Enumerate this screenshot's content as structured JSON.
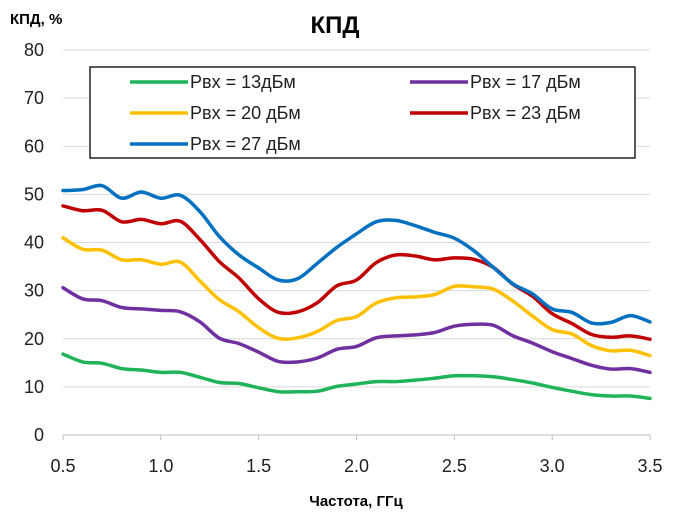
{
  "chart_data": {
    "type": "line",
    "title": "КПД",
    "ylabel": "КПД, %",
    "xlabel": "Частота, ГГц",
    "xlim": [
      0.5,
      3.5
    ],
    "ylim": [
      0,
      80
    ],
    "x_ticks": [
      "0.5",
      "1.0",
      "1.5",
      "2.0",
      "2.5",
      "3.0",
      "3.5"
    ],
    "y_ticks": [
      "0",
      "10",
      "20",
      "30",
      "40",
      "50",
      "60",
      "70",
      "80"
    ],
    "grid": "horizontal",
    "legend_position": "top",
    "x": [
      0.5,
      0.6,
      0.7,
      0.8,
      0.9,
      1.0,
      1.1,
      1.2,
      1.3,
      1.4,
      1.5,
      1.6,
      1.7,
      1.8,
      1.9,
      2.0,
      2.1,
      2.2,
      2.3,
      2.4,
      2.5,
      2.6,
      2.7,
      2.8,
      2.9,
      3.0,
      3.1,
      3.2,
      3.3,
      3.4,
      3.5
    ],
    "series": [
      {
        "name": "Pвх = 13дБм",
        "color": "#1fb35a",
        "values": [
          16.8,
          15.2,
          14.9,
          13.8,
          13.5,
          13.0,
          13.0,
          12.0,
          10.9,
          10.7,
          9.8,
          9.0,
          9.0,
          9.1,
          10.1,
          10.6,
          11.1,
          11.1,
          11.4,
          11.8,
          12.3,
          12.3,
          12.1,
          11.5,
          10.8,
          9.9,
          9.1,
          8.4,
          8.1,
          8.1,
          7.6
        ]
      },
      {
        "name": "Pвх = 17 дБм",
        "color": "#7030a0",
        "values": [
          30.6,
          28.3,
          27.9,
          26.5,
          26.2,
          25.9,
          25.6,
          23.5,
          20.1,
          19.0,
          17.2,
          15.3,
          15.2,
          16.0,
          17.8,
          18.4,
          20.2,
          20.6,
          20.8,
          21.3,
          22.6,
          23.0,
          22.8,
          20.6,
          19.1,
          17.3,
          15.9,
          14.5,
          13.7,
          13.8,
          13.0
        ]
      },
      {
        "name": "Pвх = 20 дБм",
        "color": "#ffc000",
        "values": [
          41.0,
          38.6,
          38.4,
          36.4,
          36.4,
          35.5,
          35.9,
          32.0,
          28.1,
          25.6,
          22.3,
          20.1,
          20.2,
          21.5,
          23.8,
          24.6,
          27.4,
          28.5,
          28.7,
          29.2,
          30.9,
          30.8,
          30.3,
          27.8,
          24.7,
          21.9,
          21.0,
          18.6,
          17.5,
          17.6,
          16.5
        ]
      },
      {
        "name": "Pвх = 23 дБм",
        "color": "#c00000",
        "values": [
          47.6,
          46.6,
          46.7,
          44.3,
          44.8,
          43.9,
          44.4,
          40.6,
          36.0,
          32.6,
          28.3,
          25.5,
          25.6,
          27.5,
          31.0,
          32.2,
          35.8,
          37.4,
          37.2,
          36.4,
          36.8,
          36.5,
          34.8,
          31.3,
          28.8,
          25.2,
          23.2,
          20.9,
          20.3,
          20.6,
          19.9
        ]
      },
      {
        "name": "Pвх = 27 дБм",
        "color": "#0070c0",
        "values": [
          50.8,
          51.0,
          51.8,
          49.2,
          50.5,
          49.2,
          49.8,
          46.4,
          41.2,
          37.4,
          34.7,
          32.2,
          32.5,
          35.7,
          39.0,
          41.8,
          44.3,
          44.6,
          43.5,
          42.1,
          40.9,
          38.3,
          34.8,
          31.4,
          29.3,
          26.2,
          25.5,
          23.3,
          23.4,
          24.8,
          23.5
        ]
      }
    ]
  }
}
